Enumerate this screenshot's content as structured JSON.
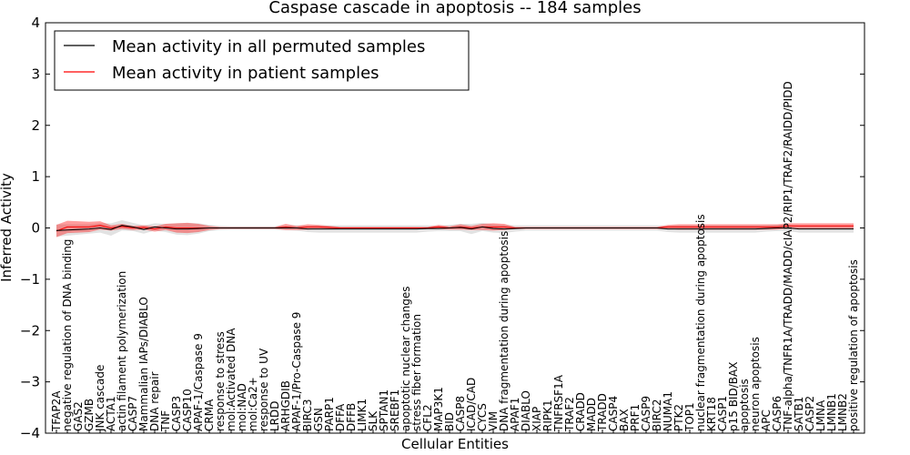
{
  "chart_data": {
    "type": "line",
    "title": "Caspase cascade in apoptosis -- 184 samples",
    "xlabel": "Cellular Entities",
    "ylabel": "Inferred Activity",
    "ylim": [
      -4,
      4
    ],
    "yticks": [
      "−4",
      "−3",
      "−2",
      "−1",
      "0",
      "1",
      "2",
      "3",
      "4"
    ],
    "legend_position": "top-left",
    "categories": [
      "TFAP2A",
      "negative regulation of DNA binding",
      "GAS2",
      "GZMB",
      "JNK cascade",
      "ACTA1",
      "actin filament polymerization",
      "CASP7",
      "Mammalian IAPs/DIABLO",
      "DNA repair",
      "TNF",
      "CASP3",
      "CASP10",
      "APAF-1/Caspase 9",
      "CRMA",
      "response to stress",
      "mol:Activated DNA",
      "mol:NAD",
      "mol:Ca2+",
      "response to UV",
      "LRDD",
      "ARHGDIB",
      "APAF-1/Pro-Caspase 9",
      "BIRC3",
      "GSN",
      "PARP1",
      "DFFA",
      "DFFB",
      "LIMK1",
      "SLK",
      "SPTAN1",
      "SREBF1",
      "apoptotic nuclear changes",
      "stress fiber formation",
      "CFL2",
      "MAP3K1",
      "BID",
      "CASP8",
      "ICAD/CAD",
      "CYCS",
      "VIM",
      "DNA fragmentation during apoptosis",
      "APAF1",
      "DIABLO",
      "XIAP",
      "RIPK1",
      "TNFRSF1A",
      "TRAF2",
      "CRADD",
      "MADD",
      "TRADD",
      "CASP4",
      "BAX",
      "PRF1",
      "CASP9",
      "BIRC2",
      "NUMA1",
      "PTK2",
      "TOP1",
      "nuclear fragmentation during apoptosis",
      "KRT18",
      "CASP1",
      "p15 BID/BAX",
      "apoptosis",
      "neuron apoptosis",
      "APC",
      "CASP6",
      "TNF-alpha/TNFR1A/TRADD/MADD/cIAP2/RIP1/TRAF2/RAIDD/PIDD",
      "SATB1",
      "CASP2",
      "LMNA",
      "LMNB1",
      "LMNB2",
      "positive regulation of apoptosis"
    ],
    "series": [
      {
        "name": "Mean activity in all permuted samples",
        "color": "#000000",
        "values": [
          -0.05,
          -0.04,
          -0.03,
          -0.02,
          0.0,
          -0.03,
          0.05,
          0.02,
          -0.03,
          0.02,
          0.0,
          -0.02,
          -0.02,
          -0.01,
          0.0,
          0.0,
          0.0,
          0.0,
          0.0,
          0.0,
          0.0,
          0.0,
          0.0,
          -0.02,
          -0.02,
          -0.02,
          -0.02,
          -0.02,
          -0.02,
          -0.02,
          -0.02,
          -0.02,
          -0.02,
          -0.02,
          -0.01,
          -0.01,
          0.0,
          0.01,
          -0.02,
          0.02,
          -0.01,
          -0.02,
          -0.01,
          0.0,
          0.0,
          0.0,
          0.0,
          0.0,
          0.0,
          0.0,
          0.0,
          0.0,
          0.0,
          0.0,
          0.0,
          0.0,
          -0.02,
          -0.02,
          -0.02,
          -0.02,
          -0.02,
          -0.02,
          -0.02,
          -0.02,
          -0.02,
          -0.01,
          0.0,
          0.0,
          -0.02,
          -0.02,
          -0.02,
          -0.02,
          -0.02,
          -0.02
        ],
        "band": [
          0.12,
          0.11,
          0.1,
          0.09,
          0.09,
          0.12,
          0.1,
          0.08,
          0.08,
          0.07,
          0.08,
          0.11,
          0.12,
          0.1,
          0.06,
          0.04,
          0.03,
          0.03,
          0.03,
          0.03,
          0.03,
          0.04,
          0.05,
          0.06,
          0.07,
          0.07,
          0.07,
          0.07,
          0.07,
          0.07,
          0.07,
          0.07,
          0.07,
          0.07,
          0.06,
          0.05,
          0.06,
          0.07,
          0.1,
          0.08,
          0.08,
          0.08,
          0.06,
          0.05,
          0.05,
          0.05,
          0.05,
          0.05,
          0.05,
          0.05,
          0.05,
          0.05,
          0.05,
          0.05,
          0.05,
          0.05,
          0.06,
          0.07,
          0.07,
          0.07,
          0.07,
          0.07,
          0.07,
          0.07,
          0.07,
          0.06,
          0.06,
          0.06,
          0.07,
          0.07,
          0.07,
          0.07,
          0.07,
          0.07
        ]
      },
      {
        "name": "Mean activity in patient samples",
        "color": "#ff0000",
        "values": [
          -0.06,
          0.02,
          0.02,
          0.02,
          0.05,
          0.0,
          0.03,
          0.0,
          0.01,
          -0.02,
          0.02,
          0.0,
          0.0,
          0.0,
          0.0,
          0.0,
          0.0,
          0.0,
          0.0,
          0.0,
          0.0,
          0.02,
          0.0,
          0.02,
          0.02,
          0.01,
          0.0,
          0.0,
          0.0,
          0.0,
          0.0,
          0.0,
          0.0,
          0.0,
          0.0,
          0.02,
          0.0,
          0.02,
          0.0,
          0.02,
          0.02,
          0.02,
          0.0,
          0.0,
          0.0,
          0.0,
          0.0,
          0.0,
          0.0,
          0.0,
          0.0,
          0.0,
          0.0,
          0.0,
          0.0,
          0.0,
          0.02,
          0.02,
          0.02,
          0.02,
          0.02,
          0.02,
          0.02,
          0.02,
          0.02,
          0.02,
          0.02,
          0.04,
          0.04,
          0.04,
          0.04,
          0.04,
          0.04,
          0.04
        ],
        "band": [
          0.12,
          0.12,
          0.11,
          0.1,
          0.08,
          0.05,
          0.05,
          0.04,
          0.04,
          0.05,
          0.06,
          0.09,
          0.1,
          0.08,
          0.04,
          0.02,
          0.02,
          0.02,
          0.02,
          0.02,
          0.02,
          0.06,
          0.04,
          0.05,
          0.04,
          0.03,
          0.02,
          0.02,
          0.02,
          0.02,
          0.02,
          0.02,
          0.02,
          0.02,
          0.02,
          0.04,
          0.03,
          0.05,
          0.04,
          0.06,
          0.07,
          0.06,
          0.02,
          0.02,
          0.02,
          0.02,
          0.02,
          0.02,
          0.02,
          0.02,
          0.02,
          0.02,
          0.02,
          0.02,
          0.02,
          0.02,
          0.04,
          0.05,
          0.05,
          0.05,
          0.05,
          0.05,
          0.05,
          0.05,
          0.05,
          0.05,
          0.05,
          0.05,
          0.05,
          0.05,
          0.05,
          0.05,
          0.05,
          0.05
        ]
      }
    ]
  }
}
